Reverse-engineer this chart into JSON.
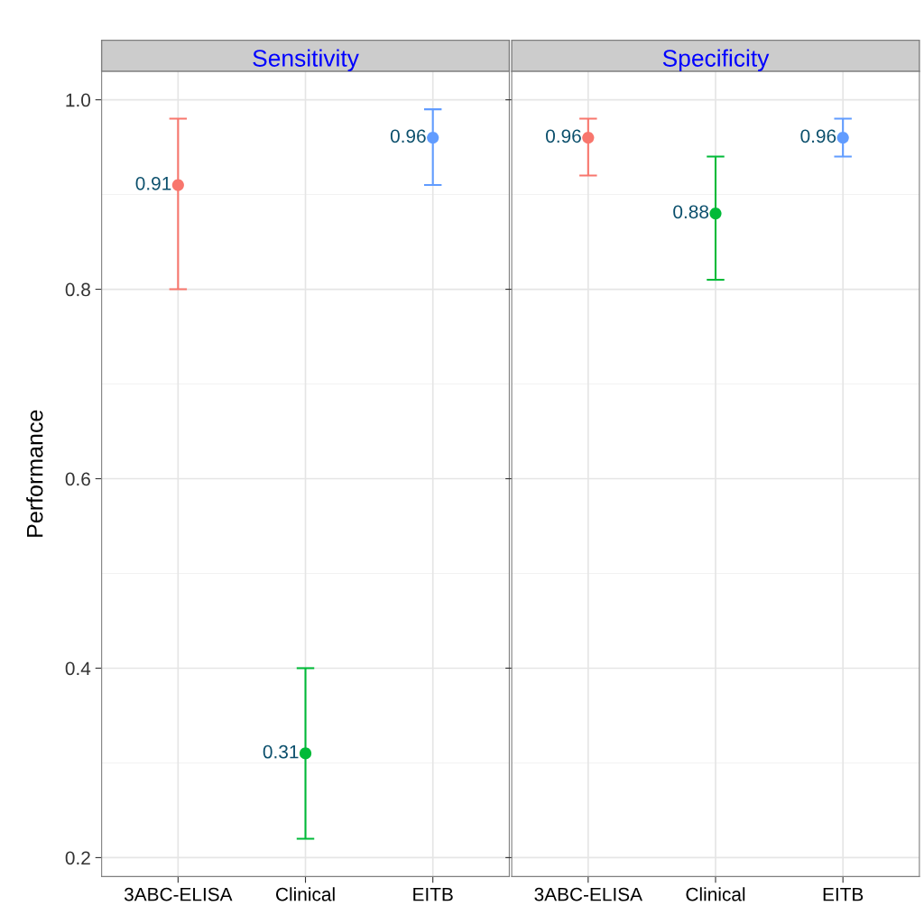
{
  "chart_data": [
    {
      "type": "scatter",
      "title": "Sensitivity",
      "ylabel": "Performance",
      "categories": [
        "3ABC-ELISA",
        "Clinical",
        "EITB"
      ],
      "values": [
        0.91,
        0.31,
        0.96
      ],
      "colors": [
        "#f8766d",
        "#00ba38",
        "#619cff"
      ],
      "errors": [
        [
          0.8,
          0.98
        ],
        [
          0.22,
          0.4
        ],
        [
          0.91,
          0.99
        ]
      ],
      "data_labels": true,
      "marker": "circle",
      "grid": true,
      "ylim": [
        0.18,
        1.03
      ],
      "yticks": [
        0.2,
        0.4,
        0.6,
        0.8,
        {
          "value": 1.0,
          "label": "1.0"
        }
      ]
    },
    {
      "type": "scatter",
      "title": "Specificity",
      "categories": [
        "3ABC-ELISA",
        "Clinical",
        "EITB"
      ],
      "values": [
        0.96,
        0.88,
        0.96
      ],
      "colors": [
        "#f8766d",
        "#00ba38",
        "#619cff"
      ],
      "errors": [
        [
          0.92,
          0.98
        ],
        [
          0.81,
          0.94
        ],
        [
          0.94,
          0.98
        ]
      ],
      "data_labels": true,
      "marker": "circle",
      "grid": true,
      "tick_labels": "x",
      "ylim": [
        0.18,
        1.03
      ],
      "yticks": [
        {
          "value": 0.2,
          "label": null
        },
        {
          "value": 0.4,
          "label": null
        },
        {
          "value": 0.6,
          "label": null
        },
        {
          "value": 0.8,
          "label": null
        },
        {
          "value": 1.0,
          "label": null
        }
      ]
    }
  ]
}
